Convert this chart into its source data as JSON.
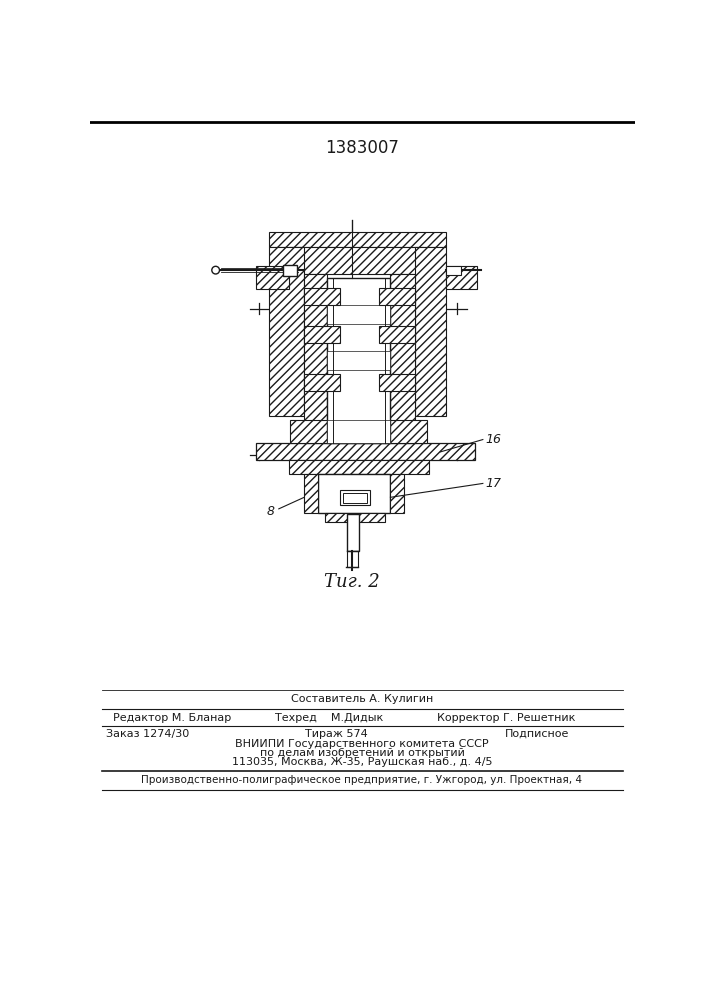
{
  "patent_number": "1383007",
  "fig_label": "Τиг. 2",
  "label_8": "8",
  "label_16": "16",
  "label_17": "17",
  "bg_color": "#ffffff",
  "line_color": "#1a1a1a",
  "editor_line": "Редактор М. Бланар",
  "composer_line": "Составитель А. Кулигин",
  "tech_line": "Техред    М.Дидык",
  "corrector_line": "Корректор Г. Решетник",
  "order_line": "Заказ 1274/30",
  "tirazh_line": "Тираж 574",
  "podpisnoe_line": "Подписное",
  "vniiipi_line": "ВНИИПИ Государственного комитета СССР",
  "po_delam_line": "по делам изобретений и открытий",
  "address_line": "113035, Москва, Ж-35, Раушская наб., д. 4/5",
  "production_line": "Производственно-полиграфическое предприятие, г. Ужгород, ул. Проектная, 4"
}
